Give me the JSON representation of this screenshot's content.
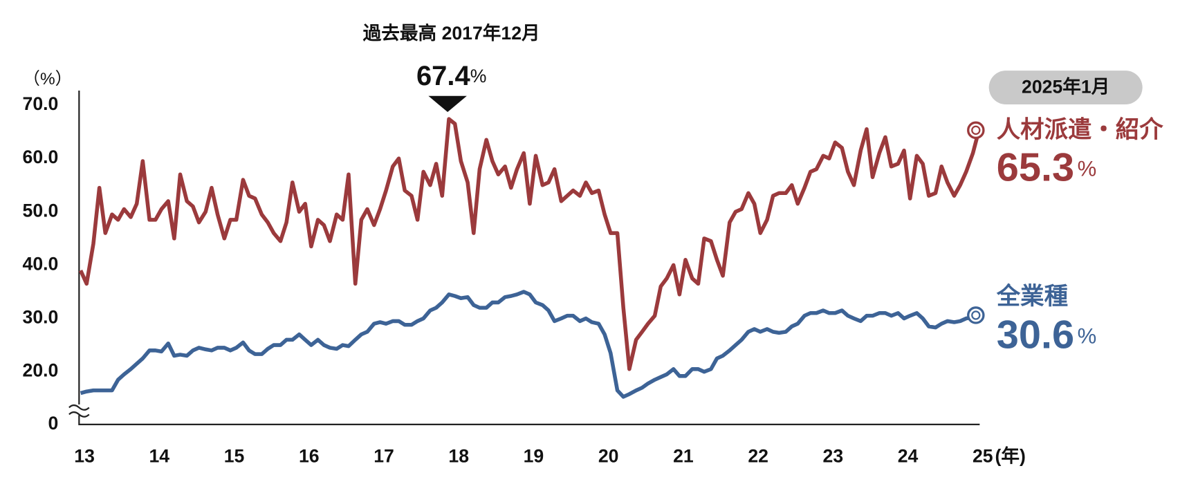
{
  "chart_data": {
    "type": "line",
    "annotation": "過去最高 2017年12月",
    "peak_index": 59,
    "date_badge": "2025年1月",
    "unit": "%",
    "ylabel": "（%）",
    "xlabel": "(年)",
    "xlim": [
      13,
      25
    ],
    "xticks": [
      13,
      14,
      15,
      16,
      17,
      18,
      19,
      20,
      21,
      22,
      23,
      24,
      25
    ],
    "ylim": [
      0,
      70
    ],
    "axis_break": [
      0,
      13
    ],
    "yticks": [
      0,
      {
        "value": 20,
        "label": "20.0"
      },
      {
        "value": 30,
        "label": "30.0"
      },
      {
        "value": 40,
        "label": "40.0"
      },
      {
        "value": 50,
        "label": "50.0"
      },
      {
        "value": 60,
        "label": "60.0"
      },
      {
        "value": 70,
        "label": "70.0"
      }
    ],
    "grid": false,
    "x": [
      13,
      13.08,
      13.17,
      13.25,
      13.33,
      13.42,
      13.5,
      13.58,
      13.67,
      13.75,
      13.83,
      13.92,
      14,
      14.08,
      14.17,
      14.25,
      14.33,
      14.42,
      14.5,
      14.58,
      14.67,
      14.75,
      14.83,
      14.92,
      15,
      15.08,
      15.17,
      15.25,
      15.33,
      15.42,
      15.5,
      15.58,
      15.67,
      15.75,
      15.83,
      15.92,
      16,
      16.08,
      16.17,
      16.25,
      16.33,
      16.42,
      16.5,
      16.58,
      16.67,
      16.75,
      16.83,
      16.92,
      17,
      17.08,
      17.17,
      17.25,
      17.33,
      17.42,
      17.5,
      17.58,
      17.67,
      17.75,
      17.83,
      17.92,
      18,
      18.08,
      18.17,
      18.25,
      18.33,
      18.42,
      18.5,
      18.58,
      18.67,
      18.75,
      18.83,
      18.92,
      19,
      19.08,
      19.17,
      19.25,
      19.33,
      19.42,
      19.5,
      19.58,
      19.67,
      19.75,
      19.83,
      19.92,
      20,
      20.08,
      20.17,
      20.25,
      20.33,
      20.42,
      20.5,
      20.58,
      20.67,
      20.75,
      20.83,
      20.92,
      21,
      21.08,
      21.17,
      21.25,
      21.33,
      21.42,
      21.5,
      21.58,
      21.67,
      21.75,
      21.83,
      21.92,
      22,
      22.08,
      22.17,
      22.25,
      22.33,
      22.42,
      22.5,
      22.58,
      22.67,
      22.75,
      22.83,
      22.92,
      23,
      23.08,
      23.17,
      23.25,
      23.33,
      23.42,
      23.5,
      23.58,
      23.67,
      23.75,
      23.83,
      23.92,
      24,
      24.08,
      24.17,
      24.25,
      24.33,
      24.42,
      24.5,
      24.58,
      24.67,
      24.75,
      24.83,
      24.92,
      25
    ],
    "series": [
      {
        "name": "人材派遣・紹介",
        "color": "#9b3a3c",
        "values": [
          39,
          36.5,
          44,
          54.5,
          46,
          49.5,
          48.5,
          50.5,
          49,
          51.5,
          59.5,
          48.5,
          48.5,
          50.5,
          52,
          45,
          57,
          52,
          51,
          48,
          50,
          54.5,
          49.5,
          45,
          48.5,
          48.5,
          56,
          53,
          52.5,
          49.5,
          48,
          46,
          44.5,
          48,
          55.5,
          50,
          51.5,
          43.5,
          48.5,
          47.5,
          44.5,
          49.5,
          48.5,
          57,
          36.5,
          48.5,
          50.5,
          47.5,
          50.5,
          54,
          58.5,
          60,
          54,
          53,
          48.5,
          57.5,
          55,
          59,
          53,
          67.4,
          66.5,
          59.5,
          55.5,
          46,
          58,
          63.5,
          59.5,
          57,
          58.5,
          54.5,
          58,
          61,
          51.5,
          60.5,
          55,
          55.5,
          58,
          52,
          53,
          54,
          53,
          55.5,
          53.5,
          54,
          49.5,
          46,
          46,
          32,
          20.5,
          26,
          27.5,
          29,
          30.5,
          36,
          37.5,
          40,
          34.5,
          41,
          37.5,
          36.5,
          45,
          44.5,
          41,
          38,
          48,
          50,
          50.5,
          53.5,
          51.5,
          46,
          48.5,
          53,
          53.5,
          53.5,
          55,
          51.5,
          54.5,
          57.5,
          58,
          60.5,
          60,
          63,
          62,
          57.5,
          55,
          61.5,
          65.5,
          56.5,
          61,
          64,
          58.5,
          59,
          61.5,
          52.5,
          60.5,
          59,
          53,
          53.5,
          58.5,
          55.5,
          53,
          55,
          57.5,
          61,
          65.3
        ]
      },
      {
        "name": "全業種",
        "color": "#3d6396",
        "values": [
          16,
          16.3,
          16.5,
          16.5,
          16.5,
          16.5,
          18.5,
          19.5,
          20.5,
          21.5,
          22.5,
          24,
          24,
          23.8,
          25.3,
          23,
          23.2,
          23,
          24,
          24.5,
          24.2,
          24,
          24.5,
          24.5,
          24,
          24.5,
          25.5,
          24,
          23.3,
          23.3,
          24.3,
          25,
          25,
          26,
          26,
          27,
          26,
          25,
          26,
          25,
          24.5,
          24.3,
          25,
          24.8,
          26,
          27,
          27.5,
          29,
          29.3,
          29,
          29.5,
          29.5,
          28.8,
          28.8,
          29.5,
          30,
          31.5,
          32,
          33,
          34.5,
          34.2,
          33.8,
          34,
          32.5,
          32,
          32,
          33,
          33,
          34,
          34.2,
          34.5,
          35,
          34.5,
          33,
          32.5,
          31.5,
          29.5,
          30,
          30.5,
          30.5,
          29.5,
          30,
          29.3,
          29,
          27,
          23.5,
          16.5,
          15.3,
          15.8,
          16.5,
          17,
          17.8,
          18.5,
          19,
          19.5,
          20.5,
          19.2,
          19.2,
          20.5,
          20.5,
          20,
          20.5,
          22.5,
          23,
          24,
          25,
          26,
          27.5,
          28,
          27.5,
          28,
          27.5,
          27.3,
          27.5,
          28.5,
          29,
          30.5,
          31,
          31,
          31.5,
          31,
          31,
          31.5,
          30.5,
          30,
          29.5,
          30.5,
          30.5,
          31,
          31,
          30.5,
          31,
          30,
          30.5,
          31,
          30,
          28.5,
          28.3,
          29,
          29.5,
          29.3,
          29.5,
          30,
          30.2,
          30.6
        ]
      }
    ]
  }
}
